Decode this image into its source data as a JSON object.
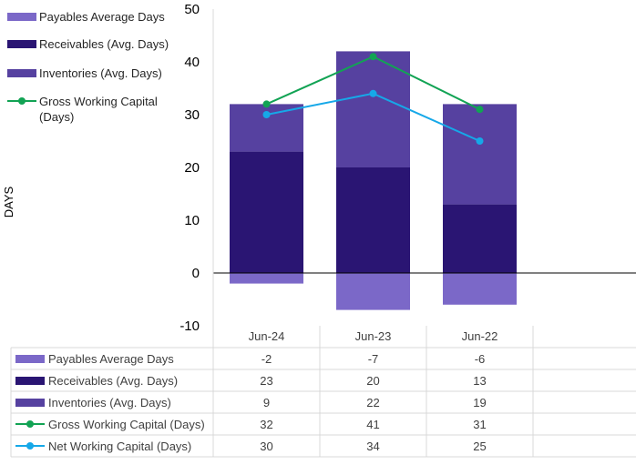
{
  "chart_data": {
    "type": "bar",
    "stacked": true,
    "categories": [
      "Jun-24",
      "Jun-23",
      "Jun-22"
    ],
    "ylabel": "DAYS",
    "ylim": [
      -10,
      50
    ],
    "yticks": [
      50,
      40,
      30,
      20,
      10,
      0,
      -10
    ],
    "grid": false,
    "legend_position": "left",
    "series": [
      {
        "name": "Payables Average Days",
        "kind": "bar",
        "color": "#7B68C8",
        "values": [
          -2,
          -7,
          -6
        ]
      },
      {
        "name": "Receivables (Avg. Days)",
        "kind": "bar",
        "color": "#2A1573",
        "values": [
          23,
          20,
          13
        ]
      },
      {
        "name": "Inventories (Avg. Days)",
        "kind": "bar",
        "color": "#5641A0",
        "values": [
          9,
          22,
          19
        ]
      },
      {
        "name": "Gross Working Capital (Days)",
        "kind": "line",
        "color": "#12A354",
        "values": [
          32,
          41,
          31
        ]
      },
      {
        "name": "Net Working Capital (Days)",
        "kind": "line",
        "color": "#16A8E8",
        "values": [
          30,
          34,
          25
        ]
      }
    ],
    "legend": [
      {
        "lines": [
          "Payables Average Days"
        ],
        "series": 0
      },
      {
        "lines": [
          "Receivables (Avg. Days)"
        ],
        "series": 1
      },
      {
        "lines": [
          "Inventories (Avg. Days)"
        ],
        "series": 2
      },
      {
        "lines": [
          "Gross Working Capital",
          "(Days)"
        ],
        "series": 3
      }
    ],
    "data_table": {
      "rows": [
        {
          "label": "Payables Average Days",
          "series": 0,
          "values": [
            "-2",
            "-7",
            "-6"
          ]
        },
        {
          "label": "Receivables (Avg. Days)",
          "series": 1,
          "values": [
            "23",
            "20",
            "13"
          ]
        },
        {
          "label": "Inventories (Avg. Days)",
          "series": 2,
          "values": [
            "9",
            "22",
            "19"
          ]
        },
        {
          "label": "Gross Working Capital (Days)",
          "series": 3,
          "values": [
            "32",
            "41",
            "31"
          ]
        },
        {
          "label": "Net Working Capital (Days)",
          "series": 4,
          "values": [
            "30",
            "34",
            "25"
          ]
        }
      ]
    }
  }
}
